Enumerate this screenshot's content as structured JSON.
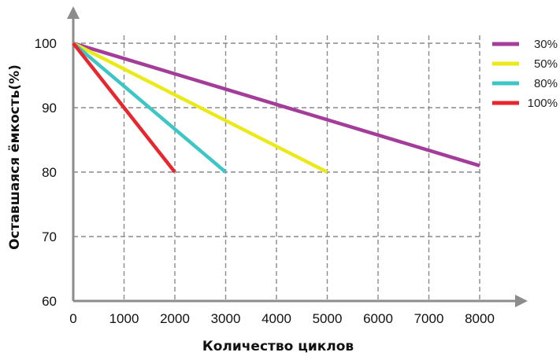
{
  "chart_data": {
    "type": "line",
    "title": "",
    "xlabel": "Количество циклов",
    "ylabel": "Оставшаяся ёмкость(%)",
    "xlim": [
      0,
      8000
    ],
    "ylim": [
      60,
      100
    ],
    "xticks": [
      "0",
      "1000",
      "2000",
      "3000",
      "4000",
      "5000",
      "6000",
      "7000",
      "8000"
    ],
    "yticks": [
      "60",
      "70",
      "80",
      "90",
      "100"
    ],
    "grid": true,
    "legend_position": "top-right",
    "series": [
      {
        "name": "30%",
        "color": "#a43c9a",
        "x": [
          0,
          8000
        ],
        "y": [
          100,
          81
        ]
      },
      {
        "name": "50%",
        "color": "#eaea1a",
        "x": [
          0,
          5000
        ],
        "y": [
          100,
          80
        ]
      },
      {
        "name": "80%",
        "color": "#3ec6c6",
        "x": [
          0,
          3000
        ],
        "y": [
          100,
          80
        ]
      },
      {
        "name": "100%",
        "color": "#e8262e",
        "x": [
          0,
          2000
        ],
        "y": [
          100,
          80
        ]
      }
    ]
  }
}
